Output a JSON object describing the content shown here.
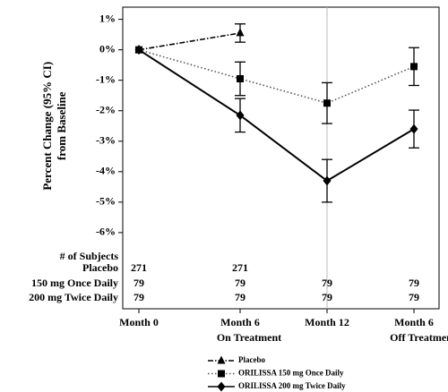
{
  "chart_data": {
    "type": "line",
    "ylabel": [
      "Percent Change (95% CI)",
      "from Baseline"
    ],
    "categories": [
      "Month 0",
      "Month 6",
      "Month 12",
      "Month 6"
    ],
    "category_notes": [
      null,
      "On Treatment",
      null,
      "Off Treatment"
    ],
    "ylim": [
      -8.5,
      1.4
    ],
    "yticks": [
      {
        "value": 1,
        "label": "1%"
      },
      {
        "value": 0,
        "label": "0%"
      },
      {
        "value": -1,
        "label": "-1%"
      },
      {
        "value": -2,
        "label": "-2%"
      },
      {
        "value": -3,
        "label": "-3%"
      },
      {
        "value": -4,
        "label": "-4%"
      },
      {
        "value": -5,
        "label": "-5%"
      },
      {
        "value": -6,
        "label": "-6%"
      }
    ],
    "reference_line_category": 2,
    "series": [
      {
        "name": "Placebo",
        "color": "#000000",
        "dash": "dashdot",
        "marker": "triangle",
        "values": [
          0,
          0.55,
          null,
          null
        ],
        "errors": [
          null,
          0.3,
          null,
          null
        ]
      },
      {
        "name": "ORILISSA 150 mg Once Daily",
        "color": "#555555",
        "dash": "dotted",
        "marker": "square",
        "values": [
          0,
          -0.95,
          -1.75,
          -0.55
        ],
        "errors": [
          null,
          0.55,
          0.67,
          0.62
        ]
      },
      {
        "name": "ORILISSA 200 mg Twice Daily",
        "color": "#000000",
        "dash": "solid",
        "marker": "diamond",
        "values": [
          0,
          -2.15,
          -4.3,
          -2.6
        ],
        "errors": [
          null,
          0.55,
          0.7,
          0.62
        ]
      }
    ],
    "subjects": {
      "title": "# of Subjects",
      "rows": [
        {
          "label": "Placebo",
          "counts": [
            271,
            271,
            null,
            null
          ]
        },
        {
          "label": "150 mg Once Daily",
          "counts": [
            79,
            79,
            79,
            79
          ]
        },
        {
          "label": "200 mg Twice Daily",
          "counts": [
            79,
            79,
            79,
            79
          ]
        }
      ]
    }
  }
}
